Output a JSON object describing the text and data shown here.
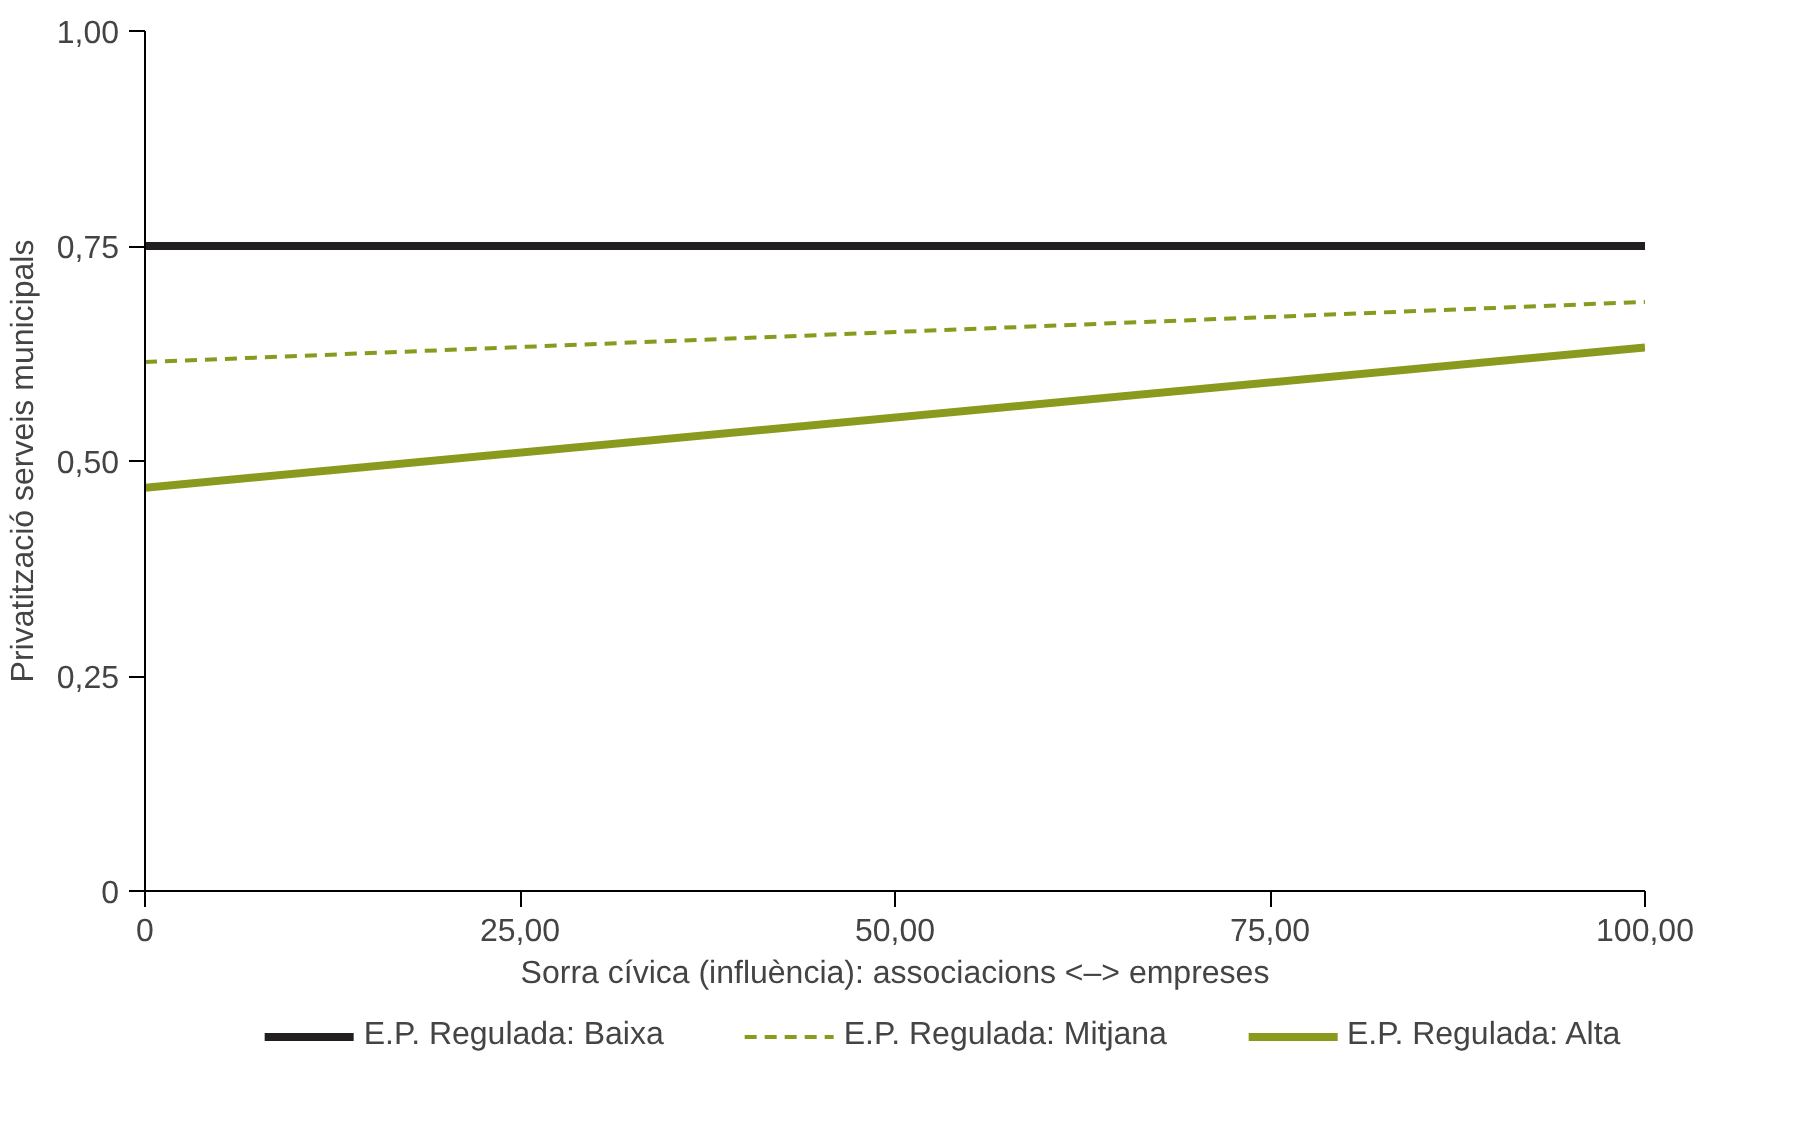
{
  "chart_data": {
    "type": "line",
    "xlabel": "Sorra cívica (influència): associacions <–> empreses",
    "ylabel": "Privatització serveis municipals",
    "x": [
      0,
      100
    ],
    "series": [
      {
        "name": "E.P. Regulada: Baixa",
        "color": "#231f20",
        "values": [
          0.75,
          0.75
        ],
        "line_style": "solid"
      },
      {
        "name": "E.P. Regulada: Mitjana",
        "color": "#8a9a1e",
        "values": [
          0.615,
          0.685
        ],
        "line_style": "dashed"
      },
      {
        "name": "E.P. Regulada: Alta",
        "color": "#8a9a1e",
        "values": [
          0.469,
          0.632
        ],
        "line_style": "solid"
      }
    ],
    "xlim": [
      0,
      100
    ],
    "ylim": [
      0,
      1
    ],
    "xticks": [
      0,
      {
        "value": 25,
        "label": "25,00"
      },
      {
        "value": 50,
        "label": "50,00"
      },
      {
        "value": 75,
        "label": "75,00"
      },
      {
        "value": 100,
        "label": "100,00"
      }
    ],
    "yticks": [
      0,
      {
        "value": 0.25,
        "label": "0,25"
      },
      {
        "value": 0.5,
        "label": "0,50"
      },
      {
        "value": 0.75,
        "label": "0,75"
      },
      {
        "value": 1,
        "label": "1,00"
      }
    ],
    "grid": false,
    "legend": "bottom",
    "marker": "none"
  }
}
